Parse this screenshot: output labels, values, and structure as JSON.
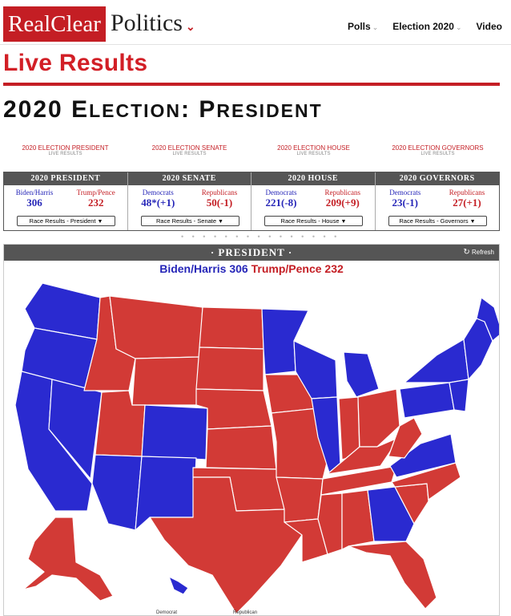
{
  "header": {
    "logo_red": "RealClear",
    "logo_black": "Politics",
    "nav": [
      {
        "label": "Polls",
        "caret": true
      },
      {
        "label": "Election 2020",
        "caret": true
      },
      {
        "label": "Video",
        "caret": false
      }
    ]
  },
  "page_title": "Live Results",
  "election_title": {
    "first": "2020 E",
    "lower1": "LECTION",
    "sep": ": P",
    "lower2": "RESIDENT"
  },
  "links": [
    {
      "main": "2020 Election President",
      "sub": "LIVE RESULTS"
    },
    {
      "main": "2020 Election Senate",
      "sub": "LIVE RESULTS"
    },
    {
      "main": "2020 Election House",
      "sub": "LIVE RESULTS"
    },
    {
      "main": "2020 Election Governors",
      "sub": "LIVE RESULTS"
    }
  ],
  "summary": [
    {
      "title": "2020 PRESIDENT",
      "dem_name": "Biden/Harris",
      "dem_value": "306",
      "rep_name": "Trump/Pence",
      "rep_value": "232",
      "select": "Race Results - President"
    },
    {
      "title": "2020 SENATE",
      "dem_name": "Democrats",
      "dem_value": "48*(+1)",
      "rep_name": "Republicans",
      "rep_value": "50(-1)",
      "select": "Race Results - Senate"
    },
    {
      "title": "2020 HOUSE",
      "dem_name": "Democrats",
      "dem_value": "221(-8)",
      "rep_name": "Republicans",
      "rep_value": "209(+9)",
      "select": "Race Results - House"
    },
    {
      "title": "2020 GOVERNORS",
      "dem_name": "Democrats",
      "dem_value": "23(-1)",
      "rep_name": "Republicans",
      "rep_value": "27(+1)",
      "select": "Race Results - Governors"
    }
  ],
  "dots": "• • • • • • • • • • • • • • •",
  "panel": {
    "title": "· PRESIDENT ·",
    "refresh": "Refresh",
    "dem_tally": "Biden/Harris 306",
    "rep_tally": "Trump/Pence 232"
  },
  "legend": {
    "dem": "Democrat",
    "rep": "Republican"
  },
  "colors": {
    "dem": "#2a2ad0",
    "rep": "#d23a36",
    "brand": "#c41e24"
  }
}
